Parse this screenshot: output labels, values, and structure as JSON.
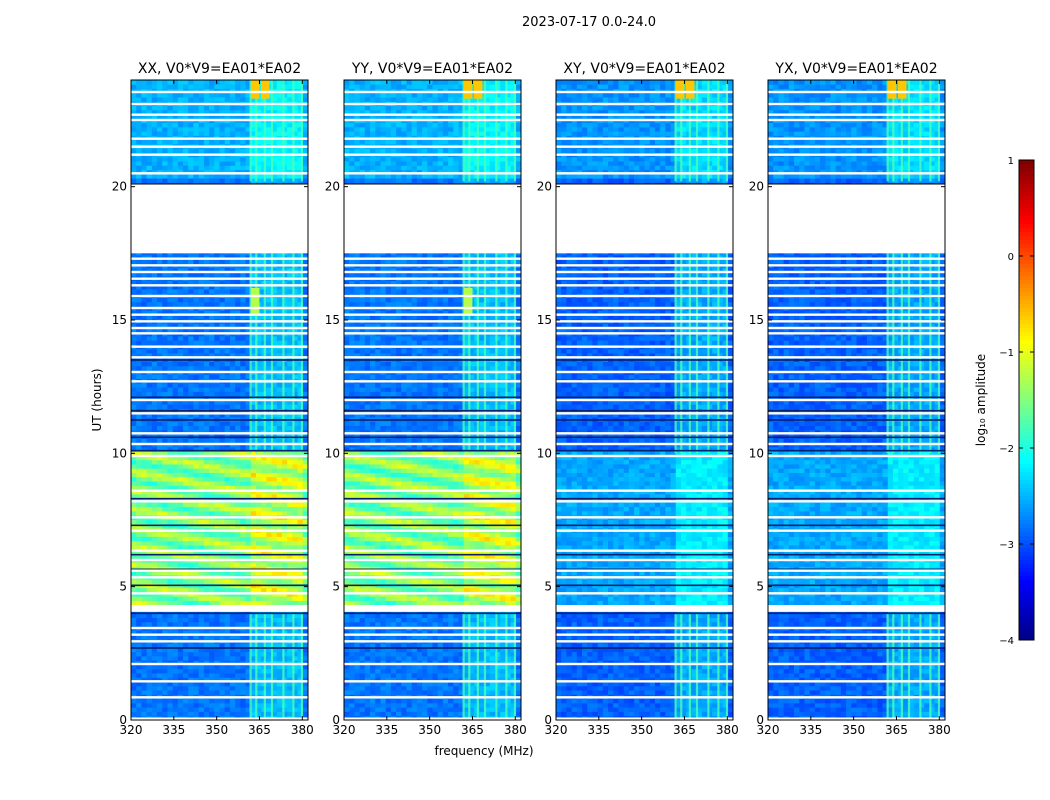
{
  "chart_data": {
    "type": "heatmap",
    "title": "2023-07-17 0.0-24.0",
    "xlabel": "frequency (MHz)",
    "ylabel": "UT (hours)",
    "xlim": [
      320,
      382
    ],
    "ylim": [
      0,
      24
    ],
    "xticks": [
      "320",
      "335",
      "350",
      "365",
      "380"
    ],
    "yticks": [
      "0",
      "5",
      "10",
      "15",
      "20"
    ],
    "panels": [
      {
        "title": "XX, V0*V9=EA01*EA02",
        "pol": "XX",
        "mode": "par"
      },
      {
        "title": "YY, V0*V9=EA01*EA02",
        "pol": "YY",
        "mode": "par"
      },
      {
        "title": "XY, V0*V9=EA01*EA02",
        "pol": "XY",
        "mode": "cross"
      },
      {
        "title": "YX, V0*V9=EA01*EA02",
        "pol": "YX",
        "mode": "cross"
      }
    ],
    "colorbar": {
      "label": "log₁₀ amplitude",
      "min": -4,
      "max": 1,
      "ticks": [
        "1",
        "0",
        "−1",
        "−2",
        "−3",
        "−4"
      ],
      "cmap": "jet"
    },
    "no_data_ut": [
      [
        20.1,
        17.5
      ]
    ],
    "rfi_band_mhz": [
      361,
      380
    ],
    "strong_rfi_ut": [
      23.3,
      24
    ]
  }
}
